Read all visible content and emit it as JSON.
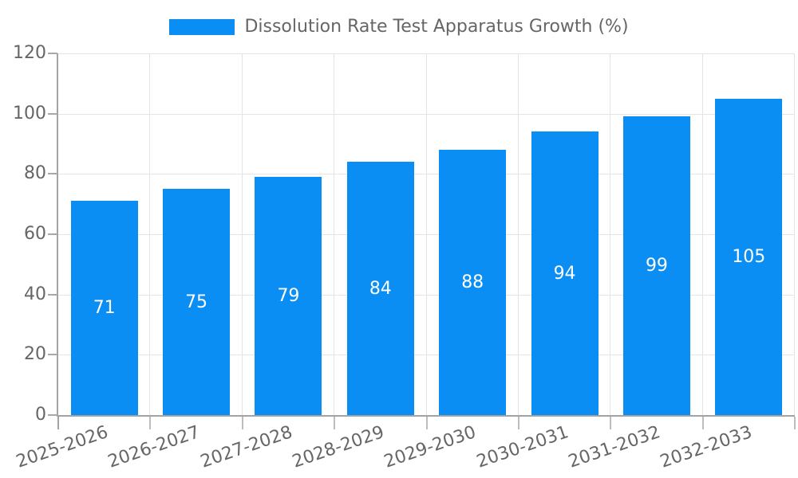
{
  "legend": {
    "label": "Dissolution Rate Test Apparatus Growth (%)",
    "swatch_color": "#0a8ef3"
  },
  "chart_data": {
    "type": "bar",
    "title": "Dissolution Rate Test Apparatus Growth (%)",
    "categories": [
      "2025-2026",
      "2026-2027",
      "2027-2028",
      "2028-2029",
      "2029-2030",
      "2030-2031",
      "2031-2032",
      "2032-2033"
    ],
    "values": [
      71,
      75,
      79,
      84,
      88,
      94,
      99,
      105
    ],
    "value_labels": [
      "71",
      "75",
      "79",
      "84",
      "88",
      "94",
      "99",
      "105"
    ],
    "xlabel": "",
    "ylabel": "",
    "ylim": [
      0,
      120
    ],
    "ytick_step": 20,
    "ytick_labels": [
      "0",
      "20",
      "40",
      "60",
      "80",
      "100",
      "120"
    ],
    "grid": true,
    "legend_position": "top-center",
    "bar_color": "#0a8ef3",
    "value_label_color": "#ffffff",
    "tick_label_color": "#666666",
    "axis_color": "#a3a3a3",
    "grid_color": "#e4e4e4",
    "background_color": "#ffffff"
  }
}
